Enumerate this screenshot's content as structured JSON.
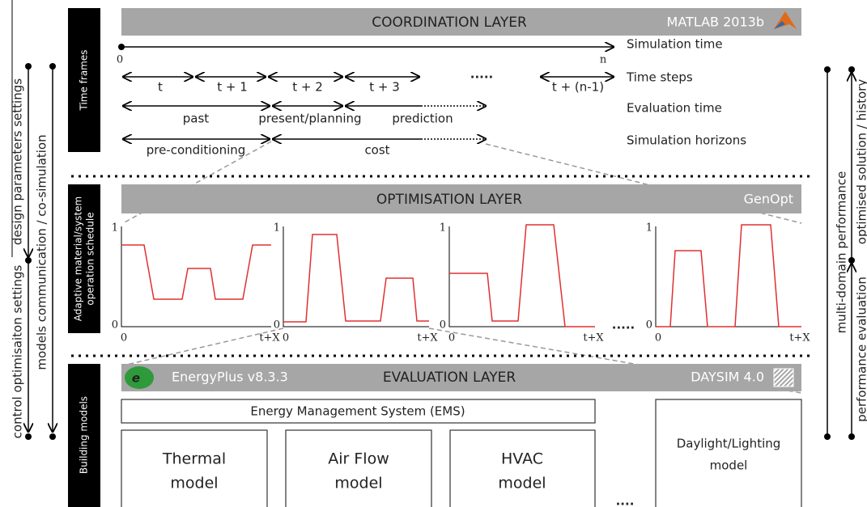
{
  "coordination_layer": {
    "title": "COORDINATION LAYER",
    "tool": "MATLAB 2013b"
  },
  "time_frames": {
    "label": "Time frames",
    "simulation_time": {
      "label": "Simulation time",
      "start": "0",
      "end": "n"
    },
    "time_steps": {
      "label": "Time steps",
      "steps": [
        "t",
        "t + 1",
        "t + 2",
        "t + 3",
        "t + (n-1)"
      ],
      "ellipsis": "....."
    },
    "evaluation_time": {
      "label": "Evaluation time",
      "phases": [
        "past",
        "present/planning",
        "prediction"
      ]
    },
    "simulation_horizons": {
      "label": "Simulation horizons",
      "phases": [
        "pre-conditioning",
        "cost"
      ]
    }
  },
  "optimisation_layer": {
    "title": "OPTIMISATION LAYER",
    "tool": "GenOpt",
    "side_label": [
      "Adaptive material/system",
      "operation schedule"
    ],
    "schedules": [
      {
        "y_top": "1",
        "y_bottom": "0",
        "x_start": "0",
        "x_end": "t+X"
      },
      {
        "y_top": "1",
        "y_bottom": "0",
        "x_start": "0",
        "x_end": "t+X"
      },
      {
        "y_top": "1",
        "y_bottom": "0",
        "x_start": "0",
        "x_end": "t+X"
      },
      {
        "y_top": "1",
        "y_bottom": "0",
        "x_start": "0",
        "x_end": "t+X"
      }
    ],
    "ellipsis": "....."
  },
  "evaluation_layer": {
    "title": "EVALUATION LAYER",
    "tool_left": "EnergyPlus v8.3.3",
    "tool_right": "DAYSIM 4.0",
    "side_label": "Building models",
    "ems": "Energy Management System (EMS)",
    "models": [
      [
        "Thermal",
        "model"
      ],
      [
        "Air Flow",
        "model"
      ],
      [
        "HVAC",
        "model"
      ],
      [
        "Daylight/Lighting",
        "model"
      ]
    ],
    "ellipsis": "...."
  },
  "side_flows": {
    "left": [
      "design parameters settings",
      "control optimisaiton settings",
      "models communication / co-simulation"
    ],
    "right": [
      "multi-domain performance",
      "optimised solution / history",
      "performance evaluation"
    ]
  }
}
